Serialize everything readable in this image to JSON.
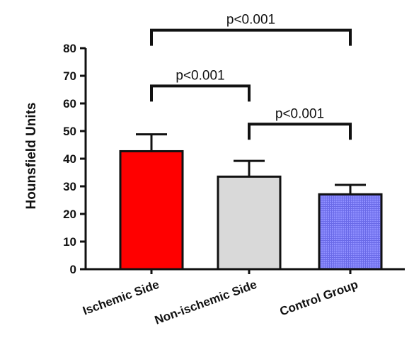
{
  "chart_data": {
    "type": "bar",
    "title": "",
    "xlabel": "",
    "ylabel": "Hounsfield Units",
    "ylim": [
      0,
      80
    ],
    "yticks": [
      0,
      10,
      20,
      30,
      40,
      50,
      60,
      70,
      80
    ],
    "grid": false,
    "categories": [
      "Ischemic Side",
      "Non-ischemic Side",
      "Control Group"
    ],
    "values": [
      42.7,
      33.5,
      27.1
    ],
    "error_upper": [
      48.8,
      39.2,
      30.5
    ],
    "colors": [
      "#ff0000",
      "#d9d9d9",
      "#8f8fff"
    ],
    "fills": [
      "solid",
      "solid",
      "grid-pattern"
    ],
    "comparisons": [
      {
        "from": 0,
        "to": 2,
        "label": "p<0.001",
        "y": 86.5
      },
      {
        "from": 0,
        "to": 1,
        "label": "p<0.001",
        "y": 66.3
      },
      {
        "from": 1,
        "to": 2,
        "label": "p<0.001",
        "y": 52.5
      }
    ]
  }
}
